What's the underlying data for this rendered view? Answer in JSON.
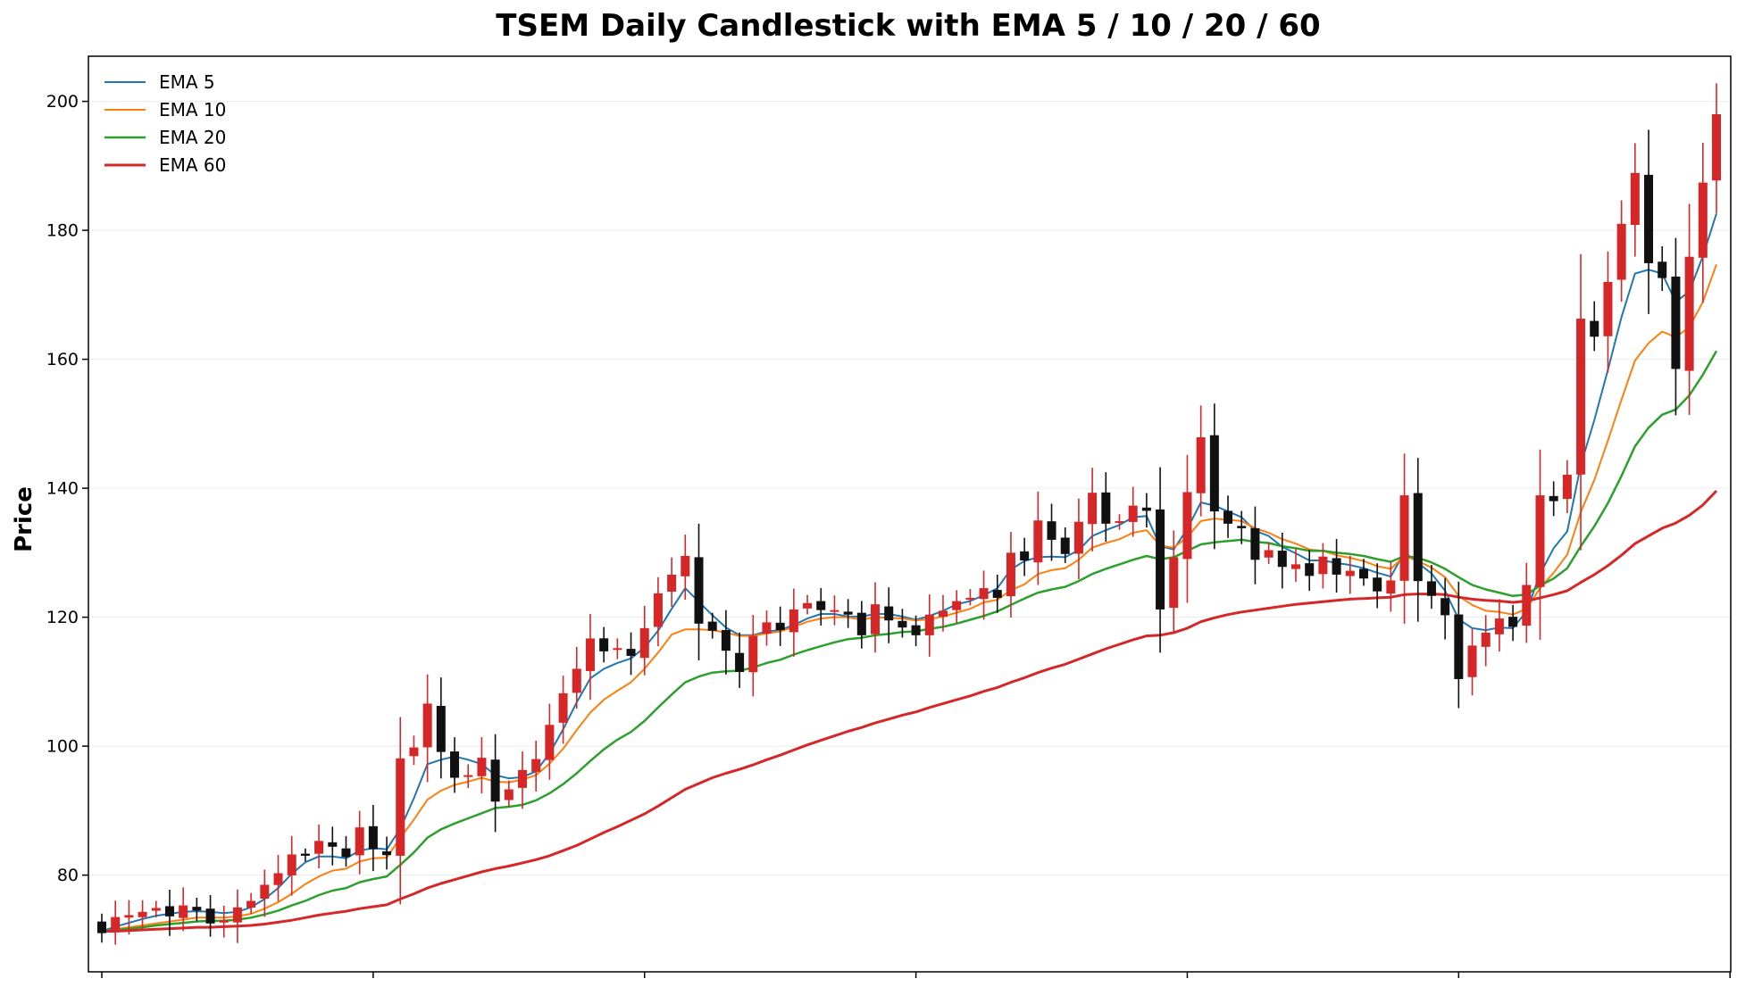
{
  "chart_data": {
    "type": "candlestick",
    "title": "TSEM Daily Candlestick with EMA 5 / 10 / 20 / 60",
    "ylabel": "Price",
    "xlabel": "",
    "ylim": [
      65,
      207
    ],
    "yticks": [
      80,
      100,
      120,
      140,
      160,
      180,
      200
    ],
    "grid": true,
    "legend_position": "top-left",
    "colors": {
      "up": "#d62728",
      "down": "#111111"
    },
    "series": [
      {
        "name": "EMA 5",
        "color": "#1f77b4"
      },
      {
        "name": "EMA 10",
        "color": "#ff7f0e"
      },
      {
        "name": "EMA 20",
        "color": "#2ca02c"
      },
      {
        "name": "EMA 60",
        "color": "#d62728"
      }
    ],
    "close": [
      71.0,
      73.5,
      73.8,
      74.3,
      74.9,
      73.6,
      75.3,
      74.5,
      72.5,
      73.0,
      75.0,
      76.0,
      78.5,
      80.3,
      83.2,
      83.0,
      85.3,
      84.4,
      82.8,
      87.4,
      84.0,
      83.1,
      98.1,
      99.8,
      106.6,
      99.1,
      95.1,
      95.5,
      98.2,
      91.4,
      93.3,
      96.3,
      98.0,
      103.3,
      108.2,
      112.0,
      116.7,
      114.7,
      115.2,
      114.0,
      118.3,
      123.7,
      126.6,
      129.5,
      119.0,
      117.9,
      114.8,
      111.5,
      117.1,
      119.2,
      118.0,
      121.2,
      122.2,
      121.1,
      121.1,
      120.4,
      117.2,
      122.0,
      119.5,
      118.4,
      117.2,
      120.4,
      121.0,
      122.5,
      123.0,
      124.5,
      123.0,
      130.0,
      128.8,
      135.0,
      132.0,
      129.8,
      134.8,
      139.3,
      134.5,
      134.9,
      137.3,
      136.5,
      121.2,
      129.3,
      139.4,
      147.9,
      136.4,
      134.5,
      133.8,
      128.9,
      130.4,
      127.8,
      128.2,
      126.4,
      129.4,
      126.6,
      127.2,
      126.0,
      124.0,
      125.7,
      138.9,
      125.6,
      123.3,
      120.3,
      110.4,
      115.6,
      117.6,
      119.8,
      118.5,
      125.0,
      138.9,
      138.0,
      142.1,
      166.3,
      163.5,
      172.0,
      181.0,
      188.9,
      174.9,
      172.6,
      158.5,
      175.9,
      187.4,
      198.0
    ],
    "ema_5": [
      71.3,
      72.0,
      72.6,
      73.2,
      73.7,
      74.0,
      74.3,
      74.4,
      74.3,
      74.1,
      74.3,
      75.0,
      76.3,
      78.0,
      80.2,
      82.0,
      82.9,
      82.9,
      82.6,
      83.8,
      84.2,
      84.0,
      87.2,
      91.9,
      97.2,
      97.9,
      98.4,
      97.9,
      97.2,
      95.5,
      95.0,
      95.2,
      96.1,
      98.9,
      102.6,
      106.8,
      110.5,
      112.0,
      112.9,
      113.6,
      115.3,
      117.9,
      121.3,
      124.5,
      122.4,
      120.3,
      118.4,
      117.2,
      117.2,
      117.8,
      118.0,
      118.8,
      119.8,
      120.5,
      120.5,
      120.1,
      120.1,
      120.5,
      120.5,
      120.1,
      119.6,
      120.2,
      121.0,
      122.0,
      122.5,
      123.4,
      124.5,
      127.4,
      128.7,
      129.3,
      129.4,
      129.3,
      130.4,
      132.6,
      133.5,
      134.3,
      135.5,
      135.7,
      131.0,
      130.5,
      133.7,
      137.8,
      137.3,
      136.4,
      135.5,
      133.4,
      132.6,
      130.9,
      129.9,
      128.8,
      128.8,
      128.4,
      128.1,
      127.6,
      126.9,
      126.3,
      130.1,
      128.4,
      126.8,
      124.1,
      119.7,
      118.3,
      118.0,
      118.4,
      118.3,
      120.9,
      126.7,
      130.7,
      133.3,
      143.6,
      150.6,
      158.4,
      166.5,
      173.3,
      173.9,
      173.3,
      168.9,
      170.5,
      176.0,
      182.6
    ],
    "ema_10": [
      71.3,
      71.6,
      71.9,
      72.2,
      72.5,
      72.8,
      73.1,
      73.4,
      73.4,
      73.4,
      73.6,
      74.0,
      74.8,
      75.8,
      77.1,
      78.6,
      79.8,
      80.7,
      81.0,
      82.1,
      82.6,
      82.7,
      85.8,
      88.6,
      91.7,
      93.1,
      94.0,
      94.5,
      95.1,
      94.5,
      94.4,
      94.8,
      95.5,
      97.3,
      99.6,
      102.5,
      105.2,
      107.2,
      108.6,
      109.9,
      112.0,
      114.5,
      117.3,
      118.1,
      118.1,
      118.0,
      117.6,
      117.1,
      117.1,
      117.5,
      117.8,
      118.5,
      119.3,
      119.8,
      120.0,
      120.0,
      119.6,
      120.0,
      119.9,
      119.8,
      119.5,
      119.7,
      120.1,
      120.7,
      121.3,
      122.3,
      122.7,
      124.2,
      125.1,
      126.7,
      127.3,
      127.6,
      128.9,
      130.8,
      131.5,
      132.1,
      133.1,
      133.5,
      131.1,
      130.8,
      132.4,
      134.9,
      135.3,
      135.1,
      134.9,
      133.8,
      133.1,
      132.1,
      131.4,
      130.5,
      130.3,
      129.6,
      129.2,
      128.7,
      127.9,
      127.5,
      129.5,
      128.7,
      127.7,
      126.2,
      123.3,
      121.9,
      121.0,
      120.8,
      120.4,
      121.3,
      124.5,
      126.9,
      129.7,
      136.3,
      141.3,
      147.4,
      153.7,
      159.8,
      162.5,
      164.3,
      163.4,
      165.0,
      168.9,
      174.7
    ],
    "ema_20": [
      71.3,
      71.5,
      71.7,
      71.9,
      72.2,
      72.4,
      72.6,
      72.8,
      72.9,
      72.9,
      73.1,
      73.4,
      73.9,
      74.5,
      75.3,
      76.0,
      76.9,
      77.6,
      78.0,
      78.9,
      79.4,
      79.8,
      81.6,
      83.5,
      85.8,
      87.1,
      88.0,
      88.8,
      89.6,
      90.4,
      90.6,
      90.9,
      91.6,
      92.7,
      94.1,
      95.8,
      97.7,
      99.5,
      101.0,
      102.2,
      103.9,
      106.0,
      108.0,
      109.9,
      110.8,
      111.4,
      111.6,
      111.7,
      112.2,
      112.9,
      113.4,
      114.2,
      114.9,
      115.5,
      116.1,
      116.6,
      116.8,
      117.2,
      117.4,
      117.7,
      117.8,
      118.2,
      118.5,
      119.0,
      119.6,
      120.2,
      120.9,
      121.9,
      122.9,
      123.8,
      124.3,
      124.7,
      125.6,
      126.7,
      127.5,
      128.2,
      128.9,
      129.5,
      129.0,
      129.3,
      130.3,
      131.3,
      131.6,
      131.8,
      132.0,
      131.7,
      131.5,
      131.0,
      130.7,
      130.3,
      130.3,
      130.0,
      129.8,
      129.5,
      129.0,
      128.6,
      129.5,
      129.2,
      128.5,
      127.5,
      126.2,
      125.0,
      124.3,
      123.8,
      123.3,
      123.5,
      124.9,
      126.0,
      127.6,
      131.0,
      134.1,
      137.7,
      141.9,
      146.5,
      149.4,
      151.4,
      152.2,
      154.4,
      157.6,
      161.3
    ],
    "ema_60": [
      71.3,
      71.3,
      71.4,
      71.5,
      71.6,
      71.7,
      71.8,
      71.9,
      71.9,
      72.0,
      72.1,
      72.2,
      72.4,
      72.7,
      73.0,
      73.4,
      73.8,
      74.1,
      74.4,
      74.8,
      75.1,
      75.4,
      76.3,
      77.1,
      78.0,
      78.7,
      79.3,
      79.9,
      80.5,
      81.0,
      81.4,
      81.9,
      82.4,
      83.0,
      83.8,
      84.6,
      85.6,
      86.6,
      87.5,
      88.5,
      89.5,
      90.7,
      92.0,
      93.3,
      94.2,
      95.1,
      95.8,
      96.4,
      97.1,
      97.9,
      98.6,
      99.4,
      100.2,
      100.9,
      101.6,
      102.3,
      102.9,
      103.6,
      104.2,
      104.8,
      105.3,
      106.0,
      106.6,
      107.2,
      107.8,
      108.5,
      109.1,
      109.9,
      110.6,
      111.4,
      112.1,
      112.7,
      113.5,
      114.3,
      115.1,
      115.8,
      116.5,
      117.1,
      117.2,
      117.6,
      118.3,
      119.3,
      119.9,
      120.4,
      120.8,
      121.1,
      121.4,
      121.7,
      122.0,
      122.2,
      122.4,
      122.6,
      122.8,
      122.9,
      123.0,
      123.1,
      123.5,
      123.6,
      123.6,
      123.5,
      123.1,
      122.8,
      122.6,
      122.5,
      122.3,
      122.5,
      123.0,
      123.5,
      124.1,
      125.4,
      126.6,
      128.0,
      129.6,
      131.4,
      132.6,
      133.8,
      134.6,
      135.8,
      137.4,
      139.6
    ]
  }
}
